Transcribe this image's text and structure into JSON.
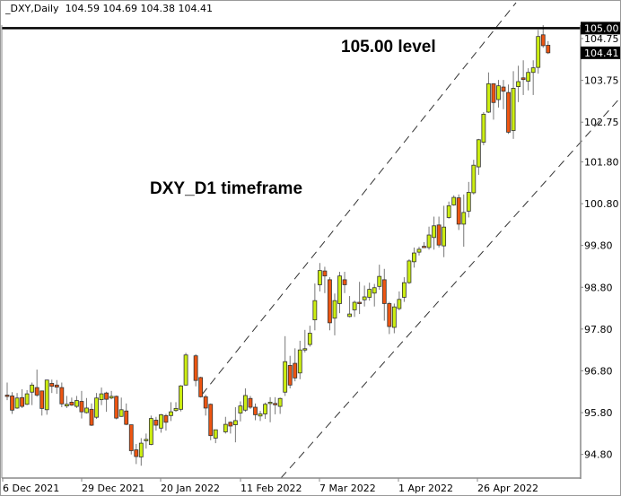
{
  "header": {
    "symbol": "_DXY,Daily",
    "ohlc": "104.59 104.69 104.38 104.41"
  },
  "annotations": {
    "level": "105.00 level",
    "timeframe": "DXY_D1 timeframe"
  },
  "colors": {
    "bull": "#ccee11",
    "bear": "#ee5511",
    "outline": "#333333",
    "wick": "#777777",
    "level_line": "#000000",
    "channel": "#333333"
  },
  "chart_data": {
    "type": "candlestick",
    "title": "",
    "symbol": "_DXY",
    "timeframe": "Daily",
    "ylim": [
      94.6,
      105.1
    ],
    "grid": false,
    "y_ticks": [
      "104.75",
      "103.75",
      "102.75",
      "101.80",
      "100.80",
      "99.80",
      "98.80",
      "97.80",
      "96.80",
      "95.80",
      "94.80"
    ],
    "x_ticks": [
      "6 Dec 2021",
      "29 Dec 2021",
      "20 Jan 2022",
      "11 Feb 2022",
      "7 Mar 2022",
      "1 Apr 2022",
      "26 Apr 2022"
    ],
    "horizontal_level": {
      "value": 105.0,
      "label": "105.00"
    },
    "last_price": {
      "value": 104.41,
      "label": "104.41"
    },
    "channel": "ascending parallel dashed channel",
    "candles": [
      [
        96.22,
        96.52,
        96.1,
        96.21
      ],
      [
        96.2,
        96.29,
        95.77,
        95.86
      ],
      [
        95.91,
        96.27,
        95.89,
        96.15
      ],
      [
        96.16,
        96.36,
        95.91,
        95.95
      ],
      [
        96.0,
        96.34,
        95.98,
        96.25
      ],
      [
        96.29,
        96.52,
        95.98,
        96.46
      ],
      [
        96.4,
        96.83,
        96.18,
        96.22
      ],
      [
        96.32,
        96.32,
        95.73,
        95.9
      ],
      [
        95.87,
        96.58,
        95.75,
        96.58
      ],
      [
        96.5,
        96.59,
        96.27,
        96.43
      ],
      [
        96.46,
        96.58,
        96.25,
        96.41
      ],
      [
        96.4,
        96.52,
        95.93,
        96.01
      ],
      [
        95.96,
        96.2,
        95.91,
        96.0
      ],
      [
        96.05,
        96.16,
        95.96,
        95.98
      ],
      [
        95.95,
        96.2,
        95.91,
        96.09
      ],
      [
        96.07,
        96.32,
        95.66,
        95.82
      ],
      [
        95.8,
        96.15,
        95.78,
        95.91
      ],
      [
        95.88,
        96.02,
        95.48,
        95.5
      ],
      [
        95.69,
        96.27,
        95.65,
        96.15
      ],
      [
        96.11,
        96.4,
        95.98,
        96.25
      ],
      [
        96.27,
        96.3,
        95.82,
        96.12
      ],
      [
        96.15,
        96.32,
        96.12,
        96.19
      ],
      [
        96.19,
        96.21,
        95.64,
        95.67
      ],
      [
        95.71,
        96.16,
        95.7,
        95.87
      ],
      [
        95.84,
        96.02,
        95.5,
        95.52
      ],
      [
        95.51,
        95.51,
        94.8,
        94.89
      ],
      [
        94.91,
        95.05,
        94.57,
        94.75
      ],
      [
        94.74,
        95.19,
        94.53,
        95.07
      ],
      [
        95.13,
        95.3,
        94.94,
        95.16
      ],
      [
        95.04,
        95.73,
        95.02,
        95.66
      ],
      [
        95.62,
        95.7,
        95.37,
        95.5
      ],
      [
        95.43,
        95.77,
        95.32,
        95.75
      ],
      [
        95.73,
        95.77,
        95.37,
        95.57
      ],
      [
        95.73,
        96.05,
        95.6,
        95.82
      ],
      [
        95.85,
        96.05,
        95.82,
        95.9
      ],
      [
        95.88,
        96.46,
        95.83,
        96.44
      ],
      [
        96.46,
        97.23,
        96.45,
        97.18
      ],
      null,
      [
        97.16,
        97.2,
        96.43,
        96.57
      ],
      [
        96.64,
        96.66,
        96.16,
        96.18
      ],
      [
        96.18,
        96.23,
        95.73,
        95.91
      ],
      [
        96.0,
        96.02,
        95.14,
        95.25
      ],
      [
        95.19,
        95.39,
        95.07,
        95.39
      ],
      null,
      [
        95.34,
        95.7,
        95.3,
        95.52
      ],
      [
        95.57,
        95.59,
        95.3,
        95.48
      ],
      [
        95.51,
        95.93,
        95.09,
        95.61
      ],
      [
        95.79,
        96.07,
        95.59,
        95.96
      ],
      [
        95.86,
        96.38,
        95.82,
        96.21
      ],
      [
        96.14,
        96.2,
        95.89,
        95.93
      ],
      [
        95.93,
        96.02,
        95.62,
        95.75
      ],
      [
        95.72,
        95.84,
        95.6,
        95.77
      ],
      [
        95.77,
        96.04,
        95.65,
        96.0
      ],
      [
        96.02,
        96.17,
        95.57,
        96.05
      ],
      [
        96.02,
        96.17,
        95.76,
        95.99
      ],
      [
        95.95,
        96.16,
        95.77,
        96.14
      ],
      [
        96.29,
        97.63,
        96.2,
        97.02
      ],
      [
        96.93,
        97.16,
        96.38,
        96.46
      ],
      [
        96.98,
        97.34,
        96.55,
        96.63
      ],
      [
        96.75,
        97.52,
        96.6,
        97.3
      ],
      [
        97.3,
        97.78,
        97.24,
        97.33
      ],
      [
        97.43,
        97.88,
        97.38,
        97.7
      ],
      [
        98.02,
        98.89,
        97.77,
        98.48
      ],
      [
        98.86,
        99.38,
        98.7,
        99.2
      ],
      [
        99.19,
        99.29,
        98.66,
        99.07
      ],
      [
        98.98,
        99.04,
        97.77,
        97.95
      ],
      [
        98.06,
        98.65,
        97.65,
        98.48
      ],
      [
        98.41,
        99.17,
        98.18,
        99.07
      ],
      [
        98.98,
        99.17,
        98.66,
        98.86
      ],
      [
        98.1,
        98.59,
        98.08,
        98.16
      ],
      [
        98.26,
        98.48,
        98.09,
        98.44
      ],
      [
        98.44,
        98.93,
        98.16,
        98.42
      ],
      [
        98.5,
        98.84,
        98.34,
        98.57
      ],
      [
        98.56,
        98.91,
        98.48,
        98.75
      ],
      [
        98.66,
        98.88,
        98.34,
        98.79
      ],
      [
        98.82,
        99.34,
        98.74,
        99.06
      ],
      [
        98.98,
        99.24,
        98.0,
        98.41
      ],
      [
        98.41,
        98.45,
        97.68,
        97.86
      ],
      [
        97.84,
        98.41,
        97.7,
        98.33
      ],
      [
        98.29,
        98.7,
        98.25,
        98.51
      ],
      [
        98.56,
        99.04,
        98.45,
        98.91
      ],
      [
        98.91,
        99.47,
        98.88,
        99.43
      ],
      [
        99.41,
        99.75,
        99.27,
        99.62
      ],
      [
        99.64,
        99.77,
        99.56,
        99.71
      ],
      [
        99.78,
        99.88,
        99.74,
        99.77
      ],
      [
        99.75,
        100.25,
        99.7,
        100.05
      ],
      [
        99.99,
        100.49,
        99.7,
        100.27
      ],
      [
        100.29,
        100.49,
        99.75,
        99.81
      ],
      [
        99.79,
        100.75,
        99.52,
        100.24
      ],
      [
        100.47,
        100.85,
        100.44,
        100.75
      ],
      [
        100.77,
        101.0,
        100.75,
        100.95
      ],
      [
        100.94,
        101.02,
        100.17,
        100.31
      ],
      [
        100.31,
        101.02,
        99.77,
        100.59
      ],
      [
        100.62,
        101.32,
        100.47,
        101.07
      ],
      [
        101.06,
        101.85,
        101.02,
        101.72
      ],
      [
        101.68,
        102.35,
        101.49,
        102.33
      ],
      [
        102.27,
        102.99,
        102.2,
        102.94
      ],
      [
        102.99,
        103.94,
        102.97,
        103.67
      ],
      [
        103.67,
        103.68,
        102.81,
        103.22
      ],
      [
        103.29,
        103.76,
        103.1,
        103.62
      ],
      [
        103.59,
        103.76,
        103.06,
        103.49
      ],
      [
        103.46,
        103.65,
        102.47,
        102.51
      ],
      [
        102.55,
        103.97,
        102.35,
        103.56
      ],
      [
        103.6,
        104.1,
        103.23,
        103.72
      ],
      [
        103.81,
        104.23,
        103.4,
        103.77
      ],
      [
        103.73,
        104.04,
        103.51,
        103.94
      ],
      [
        103.94,
        104.23,
        103.4,
        104.05
      ],
      [
        104.06,
        104.96,
        103.91,
        104.8
      ],
      [
        104.84,
        105.07,
        104.53,
        104.58
      ],
      [
        104.59,
        104.69,
        104.38,
        104.41
      ]
    ]
  }
}
